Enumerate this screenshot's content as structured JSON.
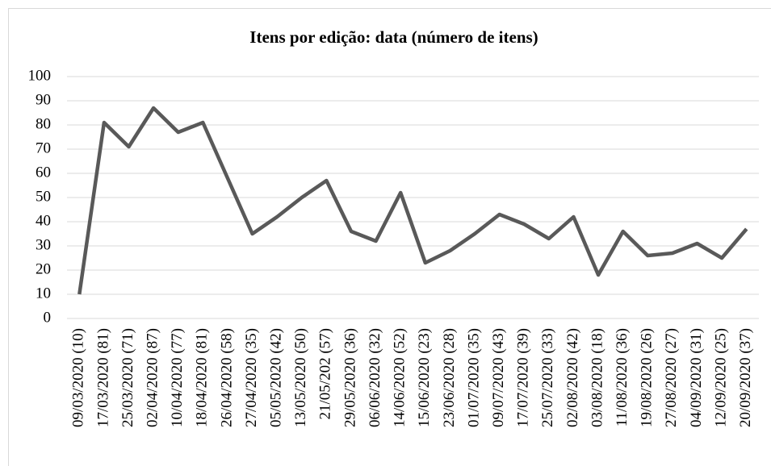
{
  "chart_data": {
    "type": "line",
    "title": "Itens por edição: data (número de itens)",
    "categories": [
      "09/03/2020 (10)",
      "17/03/2020 (81)",
      "25/03/2020 (71)",
      "02/04/2020 (87)",
      "10/04/2020 (77)",
      "18/04/2020 (81)",
      "26/04/2020 (58)",
      "27/04/2020 (35)",
      "05/05/2020 (42)",
      "13/05/2020 (50)",
      "21/05/202 (57)",
      "29/05/2020 (36)",
      "06/06/2020 (32)",
      "14/06/2020 (52)",
      "15/06/2020 (23)",
      "23/06/2020 (28)",
      "01/07/2020 (35)",
      "09/07/2020 (43)",
      "17/07/2020 (39)",
      "25/07/2020 (33)",
      "02/08/2020 (42)",
      "03/08/2020 (18)",
      "11/08/2020 (36)",
      "19/08/2020 (26)",
      "27/08/2020 (27)",
      "04/09/2020 (31)",
      "12/09/2020 (25)",
      "20/09/2020 (37)"
    ],
    "values": [
      10,
      81,
      71,
      87,
      77,
      81,
      58,
      35,
      42,
      50,
      57,
      36,
      32,
      52,
      23,
      28,
      35,
      43,
      39,
      33,
      42,
      18,
      36,
      26,
      27,
      31,
      25,
      37
    ],
    "color": "#595959",
    "ylim": [
      0,
      100
    ],
    "yticks": [
      0,
      10,
      20,
      30,
      40,
      50,
      60,
      70,
      80,
      90,
      100
    ],
    "grid": true
  }
}
